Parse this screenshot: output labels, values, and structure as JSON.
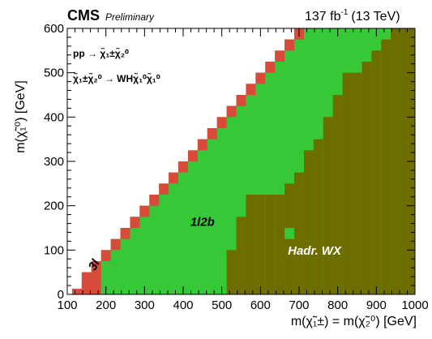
{
  "header": {
    "experiment": "CMS",
    "status": "Preliminary",
    "luminosity": "137 fb",
    "luminosity_exp": "-1",
    "energy": "(13 TeV)"
  },
  "process": {
    "line1": "pp → χ̃₁±χ̃₂⁰",
    "line2": "χ̃₁±χ̃₂⁰ → WHχ̃₁⁰χ̃₁⁰"
  },
  "chart_data": {
    "type": "heatmap",
    "title": "",
    "xlabel": "m(χ̃₁±) = m(χ̃₂⁰) [GeV]",
    "ylabel": "m(χ̃₁⁰) [GeV]",
    "xlim": [
      100,
      1000
    ],
    "ylim": [
      0,
      600
    ],
    "x_ticks": [
      100,
      200,
      300,
      400,
      500,
      600,
      700,
      800,
      900,
      1000
    ],
    "y_ticks": [
      0,
      100,
      200,
      300,
      400,
      500,
      600
    ],
    "bin_width_x": 25,
    "bin_width_y": 25,
    "grid": false,
    "categories": [
      {
        "name": "3l",
        "color": "#d94a3a"
      },
      {
        "name": "1l2b",
        "color": "#37c837"
      },
      {
        "name": "Hadr. WX",
        "color": "#6e6e00"
      }
    ],
    "diagonal_band": {
      "category": "3l",
      "rows": [
        {
          "y": 0,
          "x": [
            112.5,
            137.5
          ]
        },
        {
          "y": 12.5,
          "x": [
            137.5,
            162.5
          ]
        },
        {
          "y": 37.5,
          "x": [
            137.5,
            162.5
          ]
        },
        {
          "y": 62.5,
          "x": [
            162.5,
            187.5
          ]
        },
        {
          "y": 87.5,
          "x": [
            187.5,
            212.5
          ]
        },
        {
          "y": 112.5,
          "x": [
            212.5,
            237.5
          ]
        },
        {
          "y": 137.5,
          "x": [
            237.5,
            262.5
          ]
        },
        {
          "y": 162.5,
          "x": [
            262.5,
            287.5
          ]
        },
        {
          "y": 187.5,
          "x": [
            287.5,
            312.5
          ]
        },
        {
          "y": 212.5,
          "x": [
            312.5,
            337.5
          ]
        },
        {
          "y": 237.5,
          "x": [
            337.5,
            362.5
          ]
        },
        {
          "y": 262.5,
          "x": [
            362.5,
            387.5
          ]
        },
        {
          "y": 287.5,
          "x": [
            387.5,
            412.5
          ]
        },
        {
          "y": 312.5,
          "x": [
            412.5,
            437.5
          ]
        },
        {
          "y": 337.5,
          "x": [
            437.5,
            462.5
          ]
        },
        {
          "y": 362.5,
          "x": [
            462.5,
            487.5
          ]
        },
        {
          "y": 387.5,
          "x": [
            487.5,
            512.5
          ]
        },
        {
          "y": 412.5,
          "x": [
            512.5,
            537.5
          ]
        },
        {
          "y": 437.5,
          "x": [
            537.5,
            562.5
          ]
        },
        {
          "y": 462.5,
          "x": [
            562.5,
            587.5
          ]
        },
        {
          "y": 487.5,
          "x": [
            587.5,
            612.5
          ]
        },
        {
          "y": 512.5,
          "x": [
            612.5,
            637.5
          ]
        },
        {
          "y": 537.5,
          "x": [
            637.5,
            662.5
          ]
        },
        {
          "y": 562.5,
          "x": [
            662.5,
            687.5
          ]
        },
        {
          "y": 587.5,
          "x": [
            687.5,
            712.5
          ]
        }
      ]
    },
    "low_corner_3l": [
      {
        "x": [
          112.5,
          137.5
        ],
        "y": [
          -12.5,
          12.5
        ]
      },
      {
        "x": [
          137.5,
          162.5
        ],
        "y": [
          -12.5,
          37.5
        ]
      },
      {
        "x": [
          162.5,
          187.5
        ],
        "y": [
          -12.5,
          62.5
        ]
      }
    ],
    "hadr_wx_region": {
      "category": "Hadr. WX",
      "steps": [
        {
          "x": [
            512.5,
            537.5
          ],
          "y_max": 100
        },
        {
          "x": [
            537.5,
            562.5
          ],
          "y_max": 175
        },
        {
          "x": [
            562.5,
            587.5
          ],
          "y_max": 225
        },
        {
          "x": [
            587.5,
            612.5
          ],
          "y_max": 225
        },
        {
          "x": [
            612.5,
            637.5
          ],
          "y_max": 225
        },
        {
          "x": [
            637.5,
            662.5
          ],
          "y_max": 225
        },
        {
          "x": [
            662.5,
            687.5
          ],
          "y_max": 250
        },
        {
          "x": [
            687.5,
            712.5
          ],
          "y_max": 275
        },
        {
          "x": [
            712.5,
            737.5
          ],
          "y_max": 325
        },
        {
          "x": [
            737.5,
            762.5
          ],
          "y_max": 350
        },
        {
          "x": [
            762.5,
            787.5
          ],
          "y_max": 400
        },
        {
          "x": [
            787.5,
            812.5
          ],
          "y_max": 450
        },
        {
          "x": [
            812.5,
            837.5
          ],
          "y_max": 500
        },
        {
          "x": [
            837.5,
            862.5
          ],
          "y_max": 500
        },
        {
          "x": [
            862.5,
            887.5
          ],
          "y_max": 525
        },
        {
          "x": [
            887.5,
            912.5
          ],
          "y_max": 550
        },
        {
          "x": [
            912.5,
            937.5
          ],
          "y_max": 575
        },
        {
          "x": [
            937.5,
            962.5
          ],
          "y_max": 600
        },
        {
          "x": [
            962.5,
            1000
          ],
          "y_max": 600
        }
      ]
    },
    "wx_hole": {
      "category": "1l2b",
      "x": [
        662.5,
        687.5
      ],
      "y": [
        125,
        150
      ]
    },
    "region_labels": [
      {
        "text": "1l2b",
        "x": 450,
        "y": 155,
        "color": "#000000",
        "rotate": 0
      },
      {
        "text": "Hadr. WX",
        "x": 740,
        "y": 90,
        "color": "#ffffff",
        "rotate": 0
      },
      {
        "text": "3l",
        "x": 178,
        "y": 62,
        "color": "#000000",
        "rotate": -60
      }
    ]
  }
}
